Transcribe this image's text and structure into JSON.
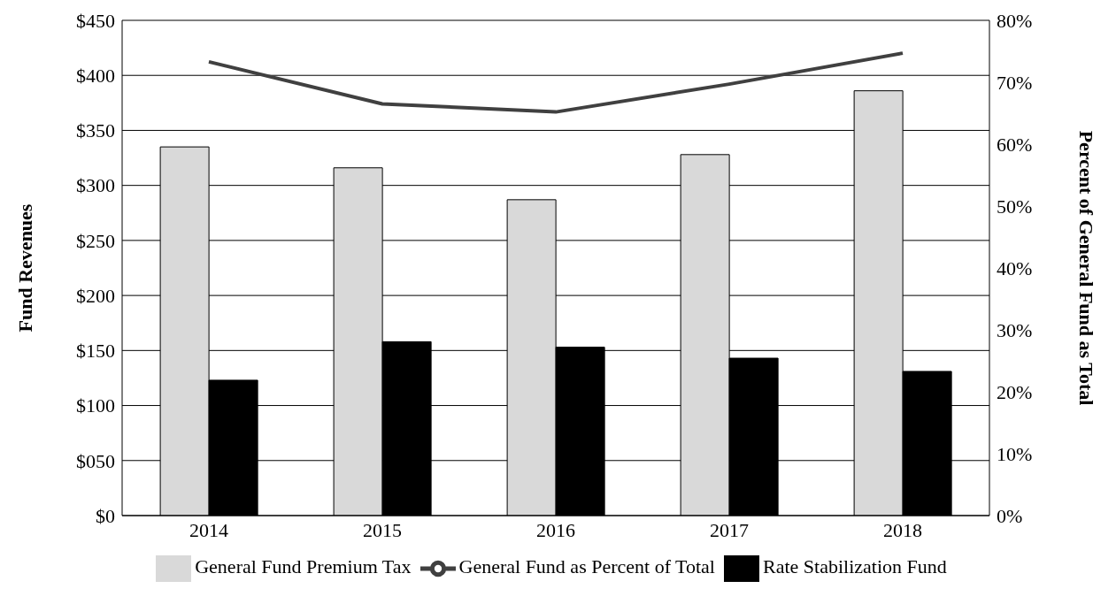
{
  "chart_data": {
    "type": "bar",
    "ylabel": "Fund Revenues",
    "y2label": "Percent of General Fund as Total",
    "categories": [
      "2014",
      "2015",
      "2016",
      "2017",
      "2018"
    ],
    "series": [
      {
        "name": "General Fund Premium Tax",
        "color": "#d9d9d9",
        "values": [
          335,
          316,
          287,
          328,
          386
        ]
      },
      {
        "name": "Rate Stabilization Fund",
        "color": "#000000",
        "values": [
          123,
          158,
          153,
          143,
          131
        ]
      },
      {
        "name": "General Fund as Percent of Total",
        "type": "line",
        "axis": "y2",
        "color": "#404040",
        "values": [
          73.3,
          66.5,
          65.2,
          69.7,
          74.7
        ]
      }
    ],
    "ylim": [
      0,
      450
    ],
    "yticks": [
      {
        "value": 0,
        "label": "$0"
      },
      {
        "value": 50,
        "label": "$050"
      },
      {
        "value": 100,
        "label": "$100"
      },
      {
        "value": 150,
        "label": "$150"
      },
      {
        "value": 200,
        "label": "$200"
      },
      {
        "value": 250,
        "label": "$250"
      },
      {
        "value": 300,
        "label": "$300"
      },
      {
        "value": 350,
        "label": "$350"
      },
      {
        "value": 400,
        "label": "$400"
      },
      {
        "value": 450,
        "label": "$450"
      }
    ],
    "y2lim": [
      0,
      80
    ],
    "y2ticks": [
      {
        "value": 0,
        "label": "0%"
      },
      {
        "value": 10,
        "label": "10%"
      },
      {
        "value": 20,
        "label": "20%"
      },
      {
        "value": 30,
        "label": "30%"
      },
      {
        "value": 40,
        "label": "40%"
      },
      {
        "value": 50,
        "label": "50%"
      },
      {
        "value": 60,
        "label": "60%"
      },
      {
        "value": 70,
        "label": "70%"
      },
      {
        "value": 80,
        "label": "80%"
      }
    ],
    "grid": "y",
    "legend": "bottom",
    "marker": "none",
    "line_style": "solid"
  }
}
